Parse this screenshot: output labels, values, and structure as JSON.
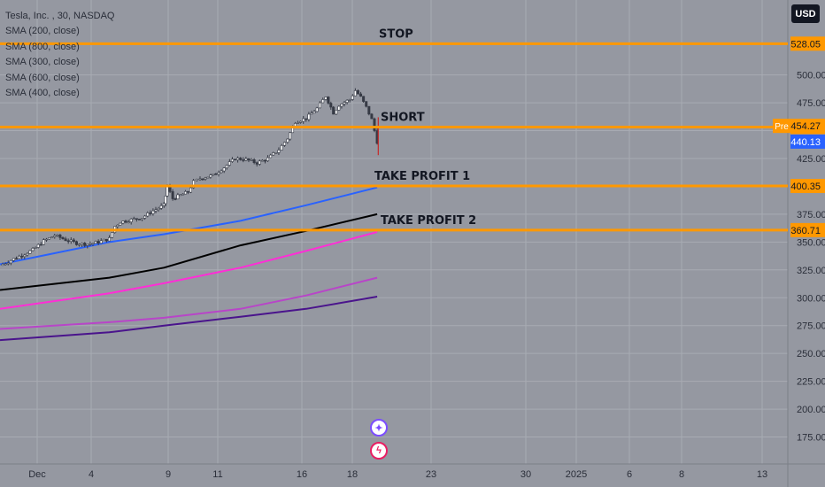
{
  "chart_data": {
    "type": "candlestick",
    "symbol_legend": "Tesla, Inc. , 30, NASDAQ",
    "indicators": [
      "SMA (200, close)",
      "SMA (800, close)",
      "SMA (300, close)",
      "SMA (600, close)",
      "SMA (400, close)"
    ],
    "currency": "USD",
    "x_ticks": [
      "Dec",
      "4",
      "9",
      "11",
      "16",
      "18",
      "23",
      "30",
      "2025",
      "6",
      "8",
      "13"
    ],
    "y_ticks": [
      175,
      200,
      225,
      250,
      275,
      300,
      325,
      350,
      375,
      400,
      425,
      450,
      475,
      500
    ],
    "ylim": [
      150,
      545
    ],
    "price_series": [
      {
        "x": 0,
        "y": 329
      },
      {
        "x": 1.5,
        "y": 336
      },
      {
        "x": 3,
        "y": 343
      },
      {
        "x": 4,
        "y": 351
      },
      {
        "x": 5,
        "y": 356
      },
      {
        "x": 6,
        "y": 352
      },
      {
        "x": 7,
        "y": 349
      },
      {
        "x": 8,
        "y": 348
      },
      {
        "x": 9,
        "y": 350
      },
      {
        "x": 10,
        "y": 353
      },
      {
        "x": 10.5,
        "y": 364
      },
      {
        "x": 11,
        "y": 368
      },
      {
        "x": 12,
        "y": 370
      },
      {
        "x": 13,
        "y": 372
      },
      {
        "x": 14,
        "y": 378
      },
      {
        "x": 15,
        "y": 383
      },
      {
        "x": 15.3,
        "y": 400
      },
      {
        "x": 15.8,
        "y": 389
      },
      {
        "x": 16.5,
        "y": 392
      },
      {
        "x": 17.2,
        "y": 395
      },
      {
        "x": 17.7,
        "y": 404
      },
      {
        "x": 18.3,
        "y": 407
      },
      {
        "x": 19.5,
        "y": 410
      },
      {
        "x": 20.5,
        "y": 417
      },
      {
        "x": 21.5,
        "y": 425
      },
      {
        "x": 22.5,
        "y": 424
      },
      {
        "x": 23.5,
        "y": 421
      },
      {
        "x": 24.5,
        "y": 425
      },
      {
        "x": 25.5,
        "y": 433
      },
      {
        "x": 26.3,
        "y": 443
      },
      {
        "x": 27,
        "y": 458
      },
      {
        "x": 28,
        "y": 461
      },
      {
        "x": 29,
        "y": 470
      },
      {
        "x": 29.8,
        "y": 481
      },
      {
        "x": 30.5,
        "y": 466
      },
      {
        "x": 31,
        "y": 473
      },
      {
        "x": 32,
        "y": 478
      },
      {
        "x": 32.5,
        "y": 486
      },
      {
        "x": 33,
        "y": 480
      },
      {
        "x": 33.5,
        "y": 471
      },
      {
        "x": 34,
        "y": 460
      },
      {
        "x": 34.5,
        "y": 440
      }
    ],
    "sma_series": [
      {
        "name": "SMA 200",
        "color": "#2962ff",
        "values": [
          {
            "x": 0,
            "y": 330
          },
          {
            "x": 10,
            "y": 350
          },
          {
            "x": 15,
            "y": 357
          },
          {
            "x": 22,
            "y": 369
          },
          {
            "x": 28,
            "y": 383
          },
          {
            "x": 34.5,
            "y": 399
          }
        ]
      },
      {
        "name": "SMA 300",
        "color": "#000000",
        "values": [
          {
            "x": 0,
            "y": 307
          },
          {
            "x": 10,
            "y": 318
          },
          {
            "x": 15,
            "y": 327
          },
          {
            "x": 22,
            "y": 347
          },
          {
            "x": 28,
            "y": 360
          },
          {
            "x": 34.5,
            "y": 375
          }
        ]
      },
      {
        "name": "SMA 400",
        "color": "#ff2ed6",
        "values": [
          {
            "x": 0,
            "y": 290
          },
          {
            "x": 10,
            "y": 304
          },
          {
            "x": 15,
            "y": 313
          },
          {
            "x": 22,
            "y": 327
          },
          {
            "x": 28,
            "y": 342
          },
          {
            "x": 34.5,
            "y": 359
          }
        ]
      },
      {
        "name": "SMA 600",
        "color": "#b845c8",
        "values": [
          {
            "x": 0,
            "y": 272
          },
          {
            "x": 10,
            "y": 278
          },
          {
            "x": 15,
            "y": 282
          },
          {
            "x": 22,
            "y": 290
          },
          {
            "x": 28,
            "y": 302
          },
          {
            "x": 34.5,
            "y": 318
          }
        ]
      },
      {
        "name": "SMA 800",
        "color": "#4a148c",
        "values": [
          {
            "x": 0,
            "y": 262
          },
          {
            "x": 10,
            "y": 269
          },
          {
            "x": 15,
            "y": 275
          },
          {
            "x": 22,
            "y": 283
          },
          {
            "x": 28,
            "y": 290
          },
          {
            "x": 34.5,
            "y": 301
          }
        ]
      }
    ],
    "levels": [
      {
        "label": "STOP",
        "value": 528.05,
        "price_label": "528.05"
      },
      {
        "label": "SHORT",
        "value": 453.19,
        "price_label": "453.19"
      },
      {
        "label": "TAKE PROFIT 1",
        "value": 400.35,
        "price_label": "400.35"
      },
      {
        "label": "TAKE PROFIT 2",
        "value": 360.71,
        "price_label": "360.71"
      }
    ],
    "markers": [
      {
        "tag": "Pre",
        "value": 454.27,
        "price_label": "454.27"
      },
      {
        "tag": "",
        "value": 440.13,
        "price_label": "440.13"
      }
    ]
  },
  "colors": {
    "background": "#9598a1",
    "grid": "#a8abb3",
    "level_line": "#ff9800",
    "level_tag": "#ff9800",
    "last_price": "#2962ff",
    "candle_up": "#363a45",
    "candle_down": "#363a45",
    "text": "#131722"
  },
  "icons": [
    "star-badge-icon",
    "flash-badge-icon"
  ]
}
